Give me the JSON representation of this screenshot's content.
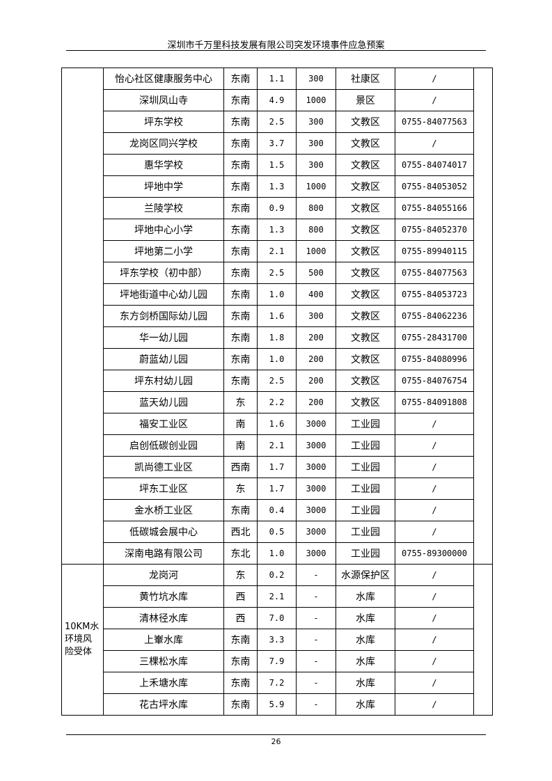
{
  "header": {
    "title": "深圳市千万里科技发展有限公司突发环境事件应急预案"
  },
  "table": {
    "groups": [
      {
        "rows": [
          [
            "怡心社区健康服务中心",
            "东南",
            "1.1",
            "300",
            "社康区",
            "/"
          ],
          [
            "深圳凤山寺",
            "东南",
            "4.9",
            "1000",
            "景区",
            "/"
          ],
          [
            "坪东学校",
            "东南",
            "2.5",
            "300",
            "文教区",
            "0755-84077563"
          ],
          [
            "龙岗区同兴学校",
            "东南",
            "3.7",
            "300",
            "文教区",
            "/"
          ],
          [
            "惠华学校",
            "东南",
            "1.5",
            "300",
            "文教区",
            "0755-84074017"
          ],
          [
            "坪地中学",
            "东南",
            "1.3",
            "1000",
            "文教区",
            "0755-84053052"
          ],
          [
            "兰陵学校",
            "东南",
            "0.9",
            "800",
            "文教区",
            "0755-84055166"
          ],
          [
            "坪地中心小学",
            "东南",
            "1.3",
            "800",
            "文教区",
            "0755-84052370"
          ],
          [
            "坪地第二小学",
            "东南",
            "2.1",
            "1000",
            "文教区",
            "0755-89940115"
          ],
          [
            "坪东学校（初中部）",
            "东南",
            "2.5",
            "500",
            "文教区",
            "0755-84077563"
          ],
          [
            "坪地街道中心幼儿园",
            "东南",
            "1.0",
            "400",
            "文教区",
            "0755-84053723"
          ],
          [
            "东方剑桥国际幼儿园",
            "东南",
            "1.6",
            "300",
            "文教区",
            "0755-84062236"
          ],
          [
            "华一幼儿园",
            "东南",
            "1.8",
            "200",
            "文教区",
            "0755-28431700"
          ],
          [
            "蔚蓝幼儿园",
            "东南",
            "1.0",
            "200",
            "文教区",
            "0755-84080996"
          ],
          [
            "坪东村幼儿园",
            "东南",
            "2.5",
            "200",
            "文教区",
            "0755-84076754"
          ],
          [
            "蓝天幼儿园",
            "东",
            "2.2",
            "200",
            "文教区",
            "0755-84091808"
          ],
          [
            "福安工业区",
            "南",
            "1.6",
            "3000",
            "工业园",
            "/"
          ],
          [
            "启创低碳创业园",
            "南",
            "2.1",
            "3000",
            "工业园",
            "/"
          ],
          [
            "凯尚德工业区",
            "西南",
            "1.7",
            "3000",
            "工业园",
            "/"
          ],
          [
            "坪东工业区",
            "东",
            "1.7",
            "3000",
            "工业园",
            "/"
          ],
          [
            "金水桥工业区",
            "东南",
            "0.4",
            "3000",
            "工业园",
            "/"
          ],
          [
            "低碳城会展中心",
            "西北",
            "0.5",
            "3000",
            "工业园",
            "/"
          ],
          [
            "深南电路有限公司",
            "东北",
            "1.0",
            "3000",
            "工业园",
            "0755-89300000"
          ]
        ]
      },
      {
        "label": "10KM水环境风险受体",
        "rows": [
          [
            "龙岗河",
            "东",
            "0.2",
            "-",
            "水源保护区",
            "/"
          ],
          [
            "黄竹坑水库",
            "西",
            "2.1",
            "-",
            "水库",
            "/"
          ],
          [
            "清林径水库",
            "西",
            "7.0",
            "-",
            "水库",
            "/"
          ],
          [
            "上輋水库",
            "东南",
            "3.3",
            "-",
            "水库",
            "/"
          ],
          [
            "三棵松水库",
            "东南",
            "7.9",
            "-",
            "水库",
            "/"
          ],
          [
            "上禾塘水库",
            "东南",
            "7.2",
            "-",
            "水库",
            "/"
          ],
          [
            "花古坪水库",
            "东南",
            "5.9",
            "-",
            "水库",
            "/"
          ]
        ]
      }
    ]
  },
  "footer": {
    "page": "26"
  }
}
